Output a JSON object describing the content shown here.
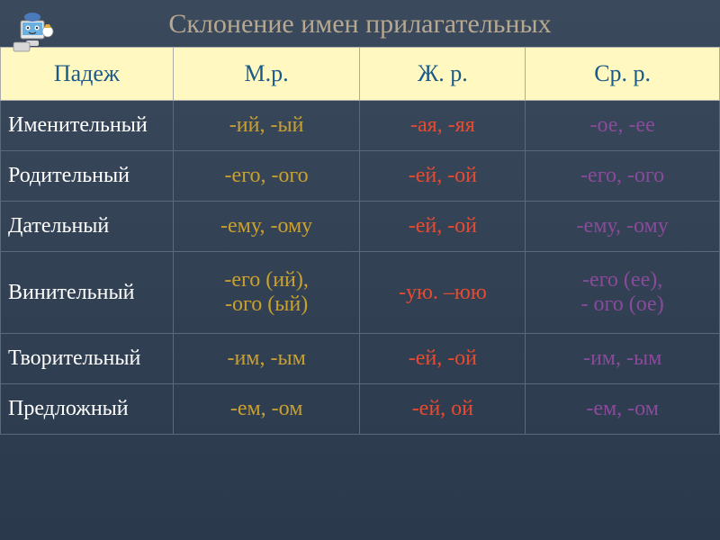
{
  "title": "Склонение имен прилагательных",
  "headers": {
    "case": "Падеж",
    "masculine": "М.р.",
    "feminine": "Ж. р.",
    "neuter": "Ср. р."
  },
  "rows": [
    {
      "case": "Именительный",
      "m": "-ий, -ый",
      "f": "-ая, -яя",
      "n": "-ое, -ее"
    },
    {
      "case": "Родительный",
      "m": "-его, -ого",
      "f": "-ей, -ой",
      "n": "-его, -ого"
    },
    {
      "case": "Дательный",
      "m": "-ему, -ому",
      "f": "-ей, -ой",
      "n": "-ему, -ому"
    },
    {
      "case": "Винительный",
      "m": "-его (ий),\n-ого (ый)",
      "f": "-ую. –юю",
      "n": "-его (ее),\n- ого (ое)"
    },
    {
      "case": "Творительный",
      "m": "-им, -ым",
      "f": "-ей, -ой",
      "n": "-им, -ым"
    },
    {
      "case": "Предложный",
      "m": "-ем, -ом",
      "f": "-ей, ой",
      "n": "-ем, -ом"
    }
  ],
  "colors": {
    "title": "#b8a890",
    "header_bg": "#fff8c0",
    "header_text": "#1a5a8a",
    "case_text": "#ffffff",
    "masculine": "#c9a030",
    "feminine": "#e84a30",
    "neuter": "#8a4a9a",
    "body_bg_top": "#3a4a5c",
    "body_bg_bottom": "#2a3a4c",
    "border": "#5a6a7a"
  },
  "fontsize": {
    "title": 30,
    "header": 26,
    "case_name": 24,
    "cell": 24
  }
}
